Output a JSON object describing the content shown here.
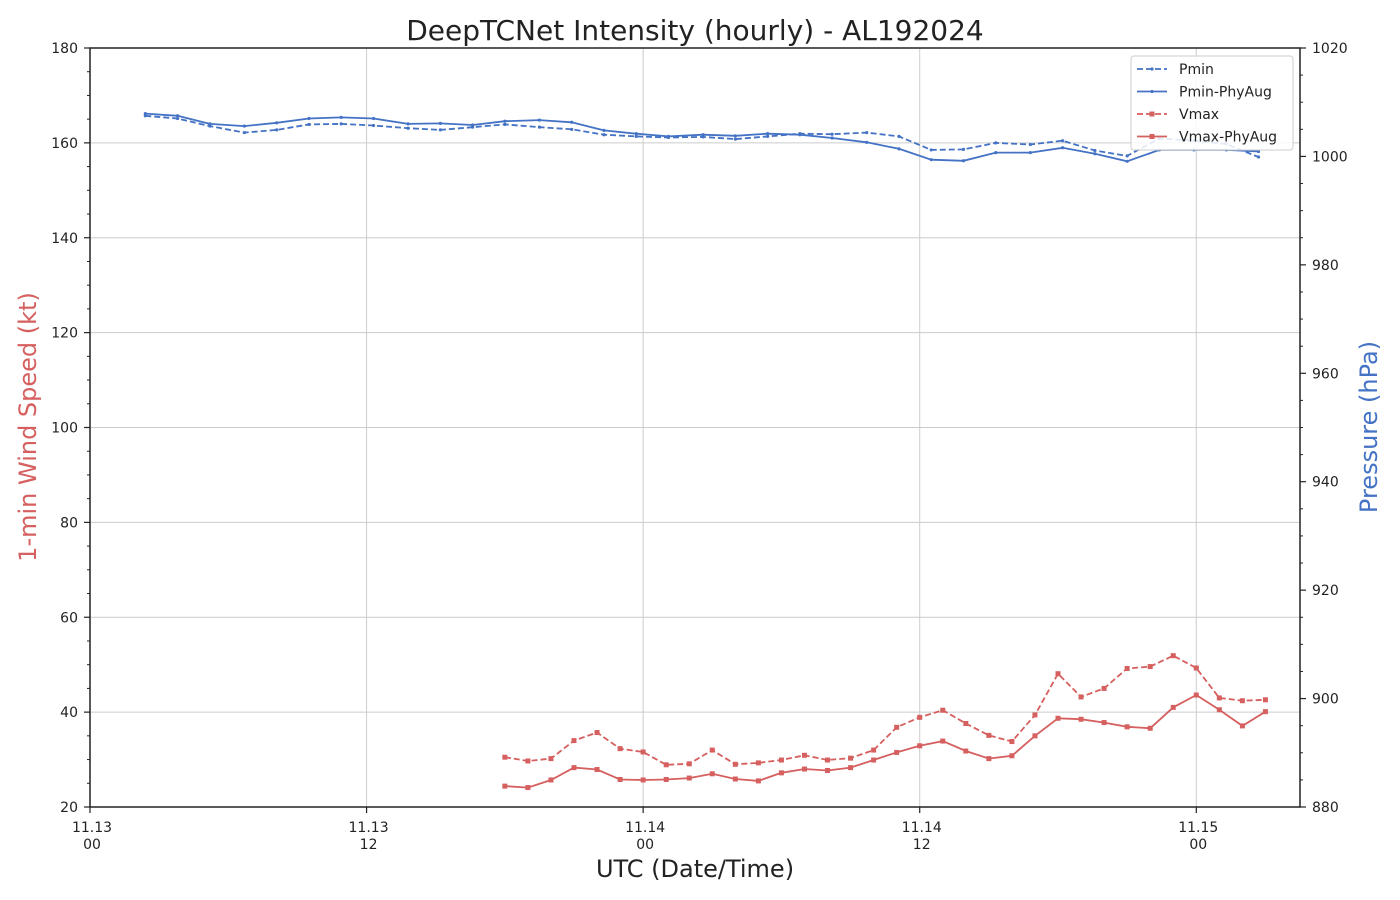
{
  "chart_data": {
    "type": "line",
    "title": "DeepTCNet Intensity (hourly) - AL192024",
    "xlabel": "UTC (Date/Time)",
    "ylabel_left": "1-min Wind Speed (kt)",
    "ylabel_right": "Pressure (hPa)",
    "x_unit": "hours since 11.13 00 UTC",
    "xlim": [
      0,
      52.5
    ],
    "ylim_left": [
      20,
      180
    ],
    "ylim_right": [
      880,
      1020
    ],
    "grid": true,
    "legend_position": "top-right",
    "x_ticks": [
      {
        "hour": 0,
        "date": "11.13",
        "time": "00"
      },
      {
        "hour": 12,
        "date": "11.13",
        "time": "12"
      },
      {
        "hour": 24,
        "date": "11.14",
        "time": "00"
      },
      {
        "hour": 36,
        "date": "11.14",
        "time": "12"
      },
      {
        "hour": 48,
        "date": "11.15",
        "time": "00"
      }
    ],
    "y_ticks_left": [
      20,
      40,
      60,
      80,
      100,
      120,
      140,
      160,
      180
    ],
    "y_ticks_right": [
      880,
      900,
      920,
      940,
      960,
      980,
      1000,
      1020
    ],
    "colors": {
      "pressure": "#4472c4",
      "wind": "#d65f5f",
      "grid": "#cccccc"
    },
    "series": [
      {
        "name": "Pmin",
        "axis": "right",
        "style": "dashed-dot",
        "points": [
          [
            2.4,
            1007.5
          ],
          [
            3.8,
            1007.0
          ],
          [
            5.2,
            1005.6
          ],
          [
            6.7,
            1004.4
          ],
          [
            8.1,
            1004.9
          ],
          [
            9.5,
            1005.9
          ],
          [
            10.9,
            1006.0
          ],
          [
            12.3,
            1005.7
          ],
          [
            13.8,
            1005.2
          ],
          [
            15.2,
            1004.9
          ],
          [
            16.6,
            1005.4
          ],
          [
            18.0,
            1005.9
          ],
          [
            19.5,
            1005.4
          ],
          [
            20.9,
            1005.0
          ],
          [
            22.3,
            1004.0
          ],
          [
            23.7,
            1003.7
          ],
          [
            25.1,
            1003.5
          ],
          [
            26.6,
            1003.6
          ],
          [
            28.0,
            1003.2
          ],
          [
            29.4,
            1003.7
          ],
          [
            30.8,
            1004.2
          ],
          [
            32.2,
            1004.1
          ],
          [
            33.7,
            1004.4
          ],
          [
            35.1,
            1003.7
          ],
          [
            36.5,
            1001.2
          ],
          [
            37.9,
            1001.3
          ],
          [
            39.3,
            1002.5
          ],
          [
            40.8,
            1002.2
          ],
          [
            42.2,
            1002.9
          ],
          [
            43.6,
            1001.1
          ],
          [
            45.0,
            1000.1
          ],
          [
            46.4,
            1003.3
          ],
          [
            47.9,
            1002.9
          ],
          [
            49.3,
            1002.3
          ],
          [
            50.7,
            999.9
          ]
        ]
      },
      {
        "name": "Pmin-PhyAug",
        "axis": "right",
        "style": "solid",
        "points": [
          [
            2.4,
            1007.9
          ],
          [
            3.8,
            1007.5
          ],
          [
            5.2,
            1006.0
          ],
          [
            6.7,
            1005.6
          ],
          [
            8.1,
            1006.2
          ],
          [
            9.5,
            1007.0
          ],
          [
            10.9,
            1007.2
          ],
          [
            12.3,
            1007.0
          ],
          [
            13.8,
            1006.0
          ],
          [
            15.2,
            1006.1
          ],
          [
            16.6,
            1005.8
          ],
          [
            18.0,
            1006.5
          ],
          [
            19.5,
            1006.7
          ],
          [
            20.9,
            1006.3
          ],
          [
            22.3,
            1004.8
          ],
          [
            23.7,
            1004.2
          ],
          [
            25.1,
            1003.7
          ],
          [
            26.6,
            1004.0
          ],
          [
            28.0,
            1003.8
          ],
          [
            29.4,
            1004.2
          ],
          [
            30.8,
            1004.0
          ],
          [
            32.2,
            1003.4
          ],
          [
            33.7,
            1002.6
          ],
          [
            35.1,
            1001.4
          ],
          [
            36.5,
            999.4
          ],
          [
            37.9,
            999.2
          ],
          [
            39.3,
            1000.7
          ],
          [
            40.8,
            1000.7
          ],
          [
            42.2,
            1001.6
          ],
          [
            43.6,
            1000.5
          ],
          [
            45.0,
            999.1
          ],
          [
            46.4,
            1001.2
          ],
          [
            47.9,
            1001.2
          ],
          [
            49.3,
            1001.2
          ],
          [
            50.7,
            1000.9
          ]
        ]
      },
      {
        "name": "Vmax",
        "axis": "left",
        "style": "dashed-square",
        "points": [
          [
            18.0,
            30.5
          ],
          [
            19.0,
            29.7
          ],
          [
            20.0,
            30.2
          ],
          [
            21.0,
            34.0
          ],
          [
            22.0,
            35.7
          ],
          [
            23.0,
            32.3
          ],
          [
            24.0,
            31.6
          ],
          [
            25.0,
            28.9
          ],
          [
            26.0,
            29.1
          ],
          [
            27.0,
            32.0
          ],
          [
            28.0,
            29.0
          ],
          [
            29.0,
            29.3
          ],
          [
            30.0,
            29.9
          ],
          [
            31.0,
            30.9
          ],
          [
            32.0,
            29.9
          ],
          [
            33.0,
            30.3
          ],
          [
            34.0,
            32.0
          ],
          [
            35.0,
            36.8
          ],
          [
            36.0,
            38.9
          ],
          [
            37.0,
            40.4
          ],
          [
            38.0,
            37.6
          ],
          [
            39.0,
            35.1
          ],
          [
            40.0,
            33.8
          ],
          [
            41.0,
            39.4
          ],
          [
            42.0,
            48.1
          ],
          [
            43.0,
            43.2
          ],
          [
            44.0,
            45.0
          ],
          [
            45.0,
            49.2
          ],
          [
            46.0,
            49.6
          ],
          [
            47.0,
            51.9
          ],
          [
            48.0,
            49.3
          ],
          [
            49.0,
            43.0
          ],
          [
            50.0,
            42.4
          ],
          [
            51.0,
            42.6
          ]
        ]
      },
      {
        "name": "Vmax-PhyAug",
        "axis": "left",
        "style": "solid-square",
        "points": [
          [
            18.0,
            24.4
          ],
          [
            19.0,
            24.1
          ],
          [
            20.0,
            25.7
          ],
          [
            21.0,
            28.3
          ],
          [
            22.0,
            27.9
          ],
          [
            23.0,
            25.8
          ],
          [
            24.0,
            25.7
          ],
          [
            25.0,
            25.8
          ],
          [
            26.0,
            26.1
          ],
          [
            27.0,
            27.0
          ],
          [
            28.0,
            25.9
          ],
          [
            29.0,
            25.5
          ],
          [
            30.0,
            27.2
          ],
          [
            31.0,
            28.0
          ],
          [
            32.0,
            27.7
          ],
          [
            33.0,
            28.3
          ],
          [
            34.0,
            29.9
          ],
          [
            35.0,
            31.5
          ],
          [
            36.0,
            32.9
          ],
          [
            37.0,
            33.9
          ],
          [
            38.0,
            31.8
          ],
          [
            39.0,
            30.2
          ],
          [
            40.0,
            30.8
          ],
          [
            41.0,
            35.0
          ],
          [
            42.0,
            38.7
          ],
          [
            43.0,
            38.5
          ],
          [
            44.0,
            37.8
          ],
          [
            45.0,
            36.9
          ],
          [
            46.0,
            36.6
          ],
          [
            47.0,
            41.0
          ],
          [
            48.0,
            43.6
          ],
          [
            49.0,
            40.5
          ],
          [
            50.0,
            37.1
          ],
          [
            51.0,
            40.1
          ]
        ]
      }
    ]
  }
}
